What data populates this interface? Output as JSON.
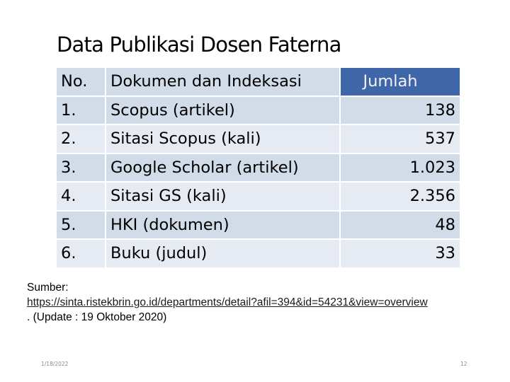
{
  "slide": {
    "title": "Data Publikasi Dosen Faterna",
    "table": {
      "headers": [
        "No.",
        "Dokumen dan Indeksasi",
        "Jumlah"
      ],
      "rows": [
        [
          "1.",
          "Scopus (artikel)",
          "138"
        ],
        [
          "2.",
          "Sitasi Scopus (kali)",
          "537"
        ],
        [
          "3.",
          "Google Scholar (artikel)",
          "1.023"
        ],
        [
          "4.",
          "Sitasi GS (kali)",
          "2.356"
        ],
        [
          "5.",
          "HKI (dokumen)",
          "48"
        ],
        [
          "6.",
          "Buku (judul)",
          "33"
        ]
      ]
    },
    "source": {
      "label": "Sumber:",
      "link": "https://sinta.ristekbrin.go.id/departments/detail?afil=394&id=54231&view=overview",
      "note": ". (Update : 19 Oktober 2020)"
    },
    "footer": {
      "date": "1/18/2022",
      "page": "12"
    }
  },
  "colors": {
    "header_accent": "#3f66a8",
    "row_dark": "#d2dbe8",
    "row_light": "#e6ebf3"
  }
}
